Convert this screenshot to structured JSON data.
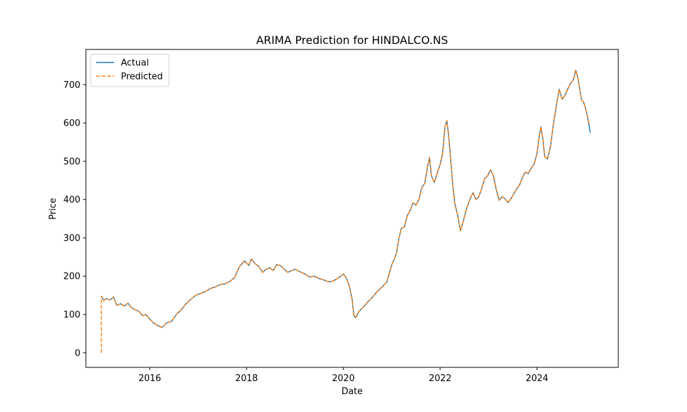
{
  "chart_data": {
    "type": "line",
    "title": "ARIMA Prediction for HINDALCO.NS",
    "xlabel": "Date",
    "ylabel": "Price",
    "xlim": [
      2014.68,
      2025.68
    ],
    "ylim": [
      -38,
      792
    ],
    "x_ticks": [
      2016,
      2018,
      2020,
      2022,
      2024
    ],
    "x_tick_labels": [
      "2016",
      "2018",
      "2020",
      "2022",
      "2024"
    ],
    "y_ticks": [
      0,
      100,
      200,
      300,
      400,
      500,
      600,
      700
    ],
    "y_tick_labels": [
      "0",
      "100",
      "200",
      "300",
      "400",
      "500",
      "600",
      "700"
    ],
    "grid": false,
    "legend": "top-left",
    "series": [
      {
        "name": "Actual",
        "color": "#1f77b4",
        "style": "solid",
        "points": [
          [
            2015.0,
            148
          ],
          [
            2015.05,
            136
          ],
          [
            2015.1,
            142
          ],
          [
            2015.18,
            138
          ],
          [
            2015.25,
            146
          ],
          [
            2015.32,
            124
          ],
          [
            2015.4,
            128
          ],
          [
            2015.48,
            122
          ],
          [
            2015.55,
            130
          ],
          [
            2015.62,
            118
          ],
          [
            2015.7,
            112
          ],
          [
            2015.78,
            108
          ],
          [
            2015.85,
            97
          ],
          [
            2015.92,
            100
          ],
          [
            2016.0,
            88
          ],
          [
            2016.08,
            78
          ],
          [
            2016.15,
            72
          ],
          [
            2016.25,
            66
          ],
          [
            2016.35,
            78
          ],
          [
            2016.45,
            82
          ],
          [
            2016.55,
            100
          ],
          [
            2016.65,
            112
          ],
          [
            2016.75,
            128
          ],
          [
            2016.85,
            140
          ],
          [
            2016.95,
            150
          ],
          [
            2017.05,
            155
          ],
          [
            2017.15,
            160
          ],
          [
            2017.25,
            168
          ],
          [
            2017.35,
            172
          ],
          [
            2017.45,
            178
          ],
          [
            2017.55,
            180
          ],
          [
            2017.65,
            186
          ],
          [
            2017.75,
            196
          ],
          [
            2017.85,
            224
          ],
          [
            2017.95,
            240
          ],
          [
            2018.05,
            228
          ],
          [
            2018.1,
            245
          ],
          [
            2018.18,
            232
          ],
          [
            2018.25,
            226
          ],
          [
            2018.33,
            210
          ],
          [
            2018.4,
            218
          ],
          [
            2018.48,
            222
          ],
          [
            2018.55,
            215
          ],
          [
            2018.62,
            230
          ],
          [
            2018.7,
            228
          ],
          [
            2018.78,
            218
          ],
          [
            2018.85,
            210
          ],
          [
            2018.92,
            214
          ],
          [
            2019.0,
            218
          ],
          [
            2019.1,
            212
          ],
          [
            2019.2,
            206
          ],
          [
            2019.3,
            198
          ],
          [
            2019.4,
            200
          ],
          [
            2019.5,
            194
          ],
          [
            2019.6,
            190
          ],
          [
            2019.7,
            185
          ],
          [
            2019.8,
            188
          ],
          [
            2019.9,
            196
          ],
          [
            2020.0,
            206
          ],
          [
            2020.05,
            198
          ],
          [
            2020.12,
            176
          ],
          [
            2020.18,
            140
          ],
          [
            2020.22,
            96
          ],
          [
            2020.26,
            92
          ],
          [
            2020.32,
            108
          ],
          [
            2020.4,
            118
          ],
          [
            2020.5,
            132
          ],
          [
            2020.6,
            145
          ],
          [
            2020.7,
            160
          ],
          [
            2020.8,
            172
          ],
          [
            2020.9,
            185
          ],
          [
            2021.0,
            230
          ],
          [
            2021.05,
            244
          ],
          [
            2021.1,
            262
          ],
          [
            2021.15,
            300
          ],
          [
            2021.2,
            326
          ],
          [
            2021.26,
            328
          ],
          [
            2021.32,
            358
          ],
          [
            2021.38,
            372
          ],
          [
            2021.44,
            392
          ],
          [
            2021.5,
            385
          ],
          [
            2021.56,
            400
          ],
          [
            2021.62,
            432
          ],
          [
            2021.68,
            442
          ],
          [
            2021.74,
            486
          ],
          [
            2021.78,
            510
          ],
          [
            2021.82,
            462
          ],
          [
            2021.88,
            445
          ],
          [
            2021.94,
            470
          ],
          [
            2022.0,
            492
          ],
          [
            2022.05,
            520
          ],
          [
            2022.1,
            592
          ],
          [
            2022.14,
            606
          ],
          [
            2022.18,
            560
          ],
          [
            2022.22,
            500
          ],
          [
            2022.26,
            440
          ],
          [
            2022.3,
            390
          ],
          [
            2022.36,
            360
          ],
          [
            2022.42,
            318
          ],
          [
            2022.48,
            345
          ],
          [
            2022.55,
            378
          ],
          [
            2022.62,
            402
          ],
          [
            2022.68,
            418
          ],
          [
            2022.74,
            400
          ],
          [
            2022.8,
            408
          ],
          [
            2022.86,
            430
          ],
          [
            2022.92,
            455
          ],
          [
            2022.98,
            462
          ],
          [
            2023.04,
            478
          ],
          [
            2023.1,
            462
          ],
          [
            2023.16,
            425
          ],
          [
            2023.22,
            398
          ],
          [
            2023.28,
            408
          ],
          [
            2023.34,
            402
          ],
          [
            2023.4,
            392
          ],
          [
            2023.46,
            402
          ],
          [
            2023.52,
            415
          ],
          [
            2023.58,
            428
          ],
          [
            2023.64,
            438
          ],
          [
            2023.7,
            458
          ],
          [
            2023.76,
            472
          ],
          [
            2023.82,
            468
          ],
          [
            2023.88,
            482
          ],
          [
            2023.94,
            492
          ],
          [
            2024.0,
            520
          ],
          [
            2024.04,
            560
          ],
          [
            2024.08,
            590
          ],
          [
            2024.12,
            560
          ],
          [
            2024.16,
            512
          ],
          [
            2024.22,
            506
          ],
          [
            2024.28,
            540
          ],
          [
            2024.34,
            598
          ],
          [
            2024.4,
            645
          ],
          [
            2024.46,
            688
          ],
          [
            2024.52,
            662
          ],
          [
            2024.58,
            672
          ],
          [
            2024.64,
            690
          ],
          [
            2024.7,
            705
          ],
          [
            2024.75,
            712
          ],
          [
            2024.8,
            738
          ],
          [
            2024.84,
            720
          ],
          [
            2024.88,
            692
          ],
          [
            2024.92,
            660
          ],
          [
            2024.96,
            655
          ],
          [
            2025.0,
            640
          ],
          [
            2025.04,
            618
          ],
          [
            2025.08,
            592
          ],
          [
            2025.1,
            575
          ]
        ]
      },
      {
        "name": "Predicted",
        "color": "#ff7f0e",
        "style": "dashed",
        "points": [
          [
            2015.0,
            0
          ],
          [
            2015.0,
            148
          ],
          [
            2015.05,
            136
          ],
          [
            2015.1,
            142
          ],
          [
            2015.18,
            138
          ],
          [
            2015.25,
            146
          ],
          [
            2015.32,
            124
          ],
          [
            2015.4,
            128
          ],
          [
            2015.48,
            122
          ],
          [
            2015.55,
            130
          ],
          [
            2015.62,
            118
          ],
          [
            2015.7,
            112
          ],
          [
            2015.78,
            108
          ],
          [
            2015.85,
            97
          ],
          [
            2015.92,
            100
          ],
          [
            2016.0,
            88
          ],
          [
            2016.08,
            78
          ],
          [
            2016.15,
            72
          ],
          [
            2016.25,
            66
          ],
          [
            2016.35,
            78
          ],
          [
            2016.45,
            82
          ],
          [
            2016.55,
            100
          ],
          [
            2016.65,
            112
          ],
          [
            2016.75,
            128
          ],
          [
            2016.85,
            140
          ],
          [
            2016.95,
            150
          ],
          [
            2017.05,
            155
          ],
          [
            2017.15,
            160
          ],
          [
            2017.25,
            168
          ],
          [
            2017.35,
            172
          ],
          [
            2017.45,
            178
          ],
          [
            2017.55,
            180
          ],
          [
            2017.65,
            186
          ],
          [
            2017.75,
            196
          ],
          [
            2017.85,
            224
          ],
          [
            2017.95,
            240
          ],
          [
            2018.05,
            228
          ],
          [
            2018.1,
            245
          ],
          [
            2018.18,
            232
          ],
          [
            2018.25,
            226
          ],
          [
            2018.33,
            210
          ],
          [
            2018.4,
            218
          ],
          [
            2018.48,
            222
          ],
          [
            2018.55,
            215
          ],
          [
            2018.62,
            230
          ],
          [
            2018.7,
            228
          ],
          [
            2018.78,
            218
          ],
          [
            2018.85,
            210
          ],
          [
            2018.92,
            214
          ],
          [
            2019.0,
            218
          ],
          [
            2019.1,
            212
          ],
          [
            2019.2,
            206
          ],
          [
            2019.3,
            198
          ],
          [
            2019.4,
            200
          ],
          [
            2019.5,
            194
          ],
          [
            2019.6,
            190
          ],
          [
            2019.7,
            185
          ],
          [
            2019.8,
            188
          ],
          [
            2019.9,
            196
          ],
          [
            2020.0,
            206
          ],
          [
            2020.05,
            198
          ],
          [
            2020.12,
            176
          ],
          [
            2020.18,
            140
          ],
          [
            2020.22,
            96
          ],
          [
            2020.26,
            92
          ],
          [
            2020.32,
            108
          ],
          [
            2020.4,
            118
          ],
          [
            2020.5,
            132
          ],
          [
            2020.6,
            145
          ],
          [
            2020.7,
            160
          ],
          [
            2020.8,
            172
          ],
          [
            2020.9,
            185
          ],
          [
            2021.0,
            230
          ],
          [
            2021.05,
            244
          ],
          [
            2021.1,
            262
          ],
          [
            2021.15,
            300
          ],
          [
            2021.2,
            326
          ],
          [
            2021.26,
            328
          ],
          [
            2021.32,
            358
          ],
          [
            2021.38,
            372
          ],
          [
            2021.44,
            392
          ],
          [
            2021.5,
            385
          ],
          [
            2021.56,
            400
          ],
          [
            2021.62,
            432
          ],
          [
            2021.68,
            442
          ],
          [
            2021.74,
            486
          ],
          [
            2021.78,
            510
          ],
          [
            2021.82,
            462
          ],
          [
            2021.88,
            445
          ],
          [
            2021.94,
            470
          ],
          [
            2022.0,
            492
          ],
          [
            2022.05,
            520
          ],
          [
            2022.1,
            592
          ],
          [
            2022.14,
            606
          ],
          [
            2022.18,
            560
          ],
          [
            2022.22,
            500
          ],
          [
            2022.26,
            440
          ],
          [
            2022.3,
            390
          ],
          [
            2022.36,
            360
          ],
          [
            2022.42,
            318
          ],
          [
            2022.48,
            345
          ],
          [
            2022.55,
            378
          ],
          [
            2022.62,
            402
          ],
          [
            2022.68,
            418
          ],
          [
            2022.74,
            400
          ],
          [
            2022.8,
            408
          ],
          [
            2022.86,
            430
          ],
          [
            2022.92,
            455
          ],
          [
            2022.98,
            462
          ],
          [
            2023.04,
            478
          ],
          [
            2023.1,
            462
          ],
          [
            2023.16,
            425
          ],
          [
            2023.22,
            398
          ],
          [
            2023.28,
            408
          ],
          [
            2023.34,
            402
          ],
          [
            2023.4,
            392
          ],
          [
            2023.46,
            402
          ],
          [
            2023.52,
            415
          ],
          [
            2023.58,
            428
          ],
          [
            2023.64,
            438
          ],
          [
            2023.7,
            458
          ],
          [
            2023.76,
            472
          ],
          [
            2023.82,
            468
          ],
          [
            2023.88,
            482
          ],
          [
            2023.94,
            492
          ],
          [
            2024.0,
            520
          ],
          [
            2024.04,
            560
          ],
          [
            2024.08,
            590
          ],
          [
            2024.12,
            560
          ],
          [
            2024.16,
            512
          ],
          [
            2024.22,
            506
          ],
          [
            2024.28,
            540
          ],
          [
            2024.34,
            598
          ],
          [
            2024.4,
            645
          ],
          [
            2024.46,
            688
          ],
          [
            2024.52,
            662
          ],
          [
            2024.58,
            672
          ],
          [
            2024.64,
            690
          ],
          [
            2024.7,
            705
          ],
          [
            2024.75,
            712
          ],
          [
            2024.8,
            738
          ],
          [
            2024.84,
            720
          ],
          [
            2024.88,
            692
          ],
          [
            2024.92,
            660
          ],
          [
            2024.96,
            655
          ],
          [
            2025.0,
            640
          ],
          [
            2025.04,
            618
          ],
          [
            2025.08,
            596
          ]
        ]
      }
    ]
  }
}
